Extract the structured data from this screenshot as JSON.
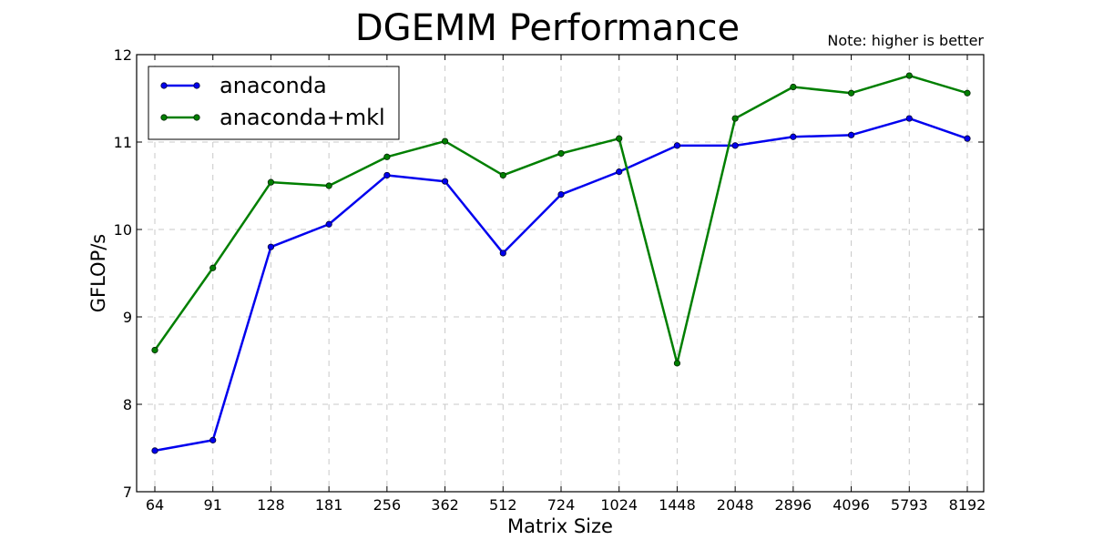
{
  "chart_data": {
    "type": "line",
    "title": "DGEMM Performance",
    "note": "Note: higher is better",
    "xlabel": "Matrix Size",
    "ylabel": "GFLOP/s",
    "categories": [
      "64",
      "91",
      "128",
      "181",
      "256",
      "362",
      "512",
      "724",
      "1024",
      "1448",
      "2048",
      "2896",
      "4096",
      "5793",
      "8192"
    ],
    "ylim": [
      7,
      12
    ],
    "yticks": [
      "7",
      "8",
      "9",
      "10",
      "11",
      "12"
    ],
    "grid": true,
    "legend_position": "top-left",
    "series": [
      {
        "name": "anaconda",
        "color": "#0000ee",
        "values": [
          7.47,
          7.59,
          9.8,
          10.06,
          10.62,
          10.55,
          9.73,
          10.4,
          10.66,
          10.96,
          10.96,
          11.06,
          11.08,
          11.27,
          11.04
        ]
      },
      {
        "name": "anaconda+mkl",
        "color": "#007f00",
        "values": [
          8.62,
          9.56,
          10.54,
          10.5,
          10.83,
          11.01,
          10.62,
          10.87,
          11.04,
          8.47,
          11.27,
          11.63,
          11.56,
          11.76,
          11.56
        ]
      }
    ]
  }
}
